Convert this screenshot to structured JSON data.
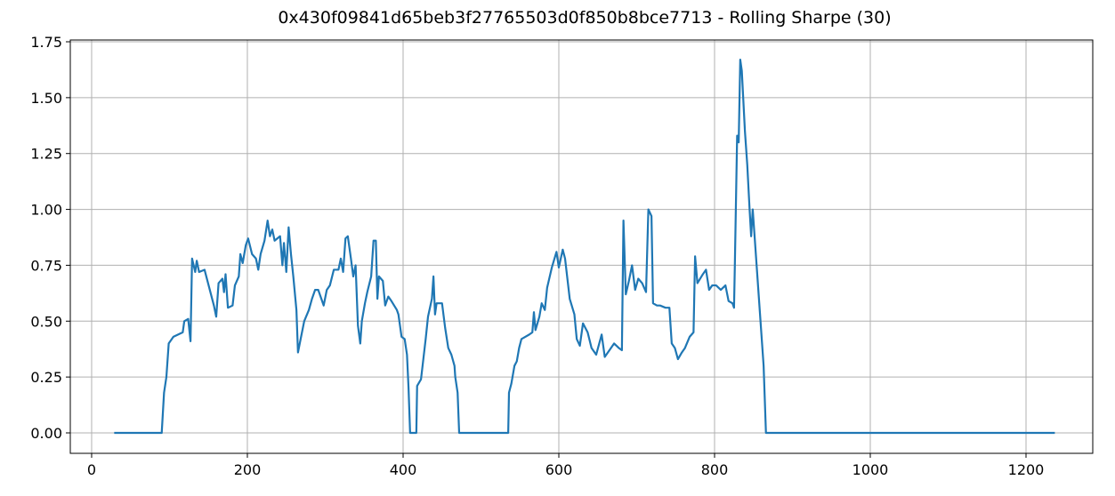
{
  "chart_data": {
    "type": "line",
    "title": "0x430f09841d65beb3f27765503d0f850b8bce7713 - Rolling Sharpe (30)",
    "color": "#1f77b4",
    "grid": true,
    "xlim": [
      -27.4,
      1285.7
    ],
    "ylim": [
      -0.0915,
      1.758
    ],
    "xticks": [
      0,
      200,
      400,
      600,
      800,
      1000,
      1200
    ],
    "yticks": [
      {
        "value": 0,
        "label": "0.00"
      },
      {
        "value": 0.25,
        "label": "0.25"
      },
      {
        "value": 0.5,
        "label": "0.50"
      },
      {
        "value": 0.75,
        "label": "0.75"
      },
      {
        "value": 1,
        "label": "1.00"
      },
      {
        "value": 1.25,
        "label": "1.25"
      },
      {
        "value": 1.5,
        "label": "1.50"
      },
      {
        "value": 1.75,
        "label": "1.75"
      }
    ],
    "x": [
      29,
      90,
      93,
      96,
      99,
      105,
      117,
      119,
      124,
      127,
      129,
      133,
      135,
      138,
      145,
      151,
      157,
      160,
      163,
      168,
      170,
      172,
      175,
      181,
      184,
      189,
      191,
      194,
      198,
      201,
      206,
      211,
      214,
      217,
      222,
      226,
      229,
      232,
      235,
      242,
      245,
      247,
      250,
      253,
      256,
      259,
      263,
      265,
      269,
      273,
      279,
      283,
      287,
      291,
      295,
      298,
      302,
      306,
      311,
      317,
      320,
      323,
      326,
      329,
      333,
      336,
      339,
      342,
      345,
      347,
      351,
      354,
      359,
      362,
      365,
      367,
      369,
      374,
      377,
      381,
      385,
      392,
      394,
      398,
      402,
      405,
      407,
      409,
      417,
      418,
      423,
      425,
      429,
      432,
      437,
      439,
      441,
      443,
      450,
      454,
      458,
      462,
      466,
      467,
      470,
      472,
      535,
      536,
      539,
      543,
      546,
      549,
      552,
      562,
      566,
      568,
      570,
      575,
      578,
      582,
      585,
      591,
      597,
      600,
      605,
      608,
      614,
      620,
      623,
      627,
      631,
      637,
      642,
      648,
      655,
      659,
      665,
      671,
      677,
      681,
      683,
      686,
      690,
      694,
      698,
      702,
      707,
      712,
      715,
      719,
      721,
      726,
      730,
      737,
      742,
      745,
      749,
      753,
      758,
      762,
      768,
      773,
      775,
      778,
      785,
      789,
      793,
      797,
      802,
      808,
      814,
      818,
      823,
      825,
      826,
      829,
      831,
      833,
      835,
      839,
      842,
      845,
      847,
      849,
      851,
      855,
      859,
      863,
      864,
      866,
      1237
    ],
    "values": [
      0,
      0,
      0.18,
      0.25,
      0.4,
      0.43,
      0.45,
      0.5,
      0.51,
      0.41,
      0.78,
      0.72,
      0.77,
      0.72,
      0.73,
      0.65,
      0.57,
      0.52,
      0.67,
      0.69,
      0.63,
      0.71,
      0.56,
      0.57,
      0.66,
      0.7,
      0.8,
      0.76,
      0.84,
      0.87,
      0.8,
      0.78,
      0.73,
      0.8,
      0.86,
      0.95,
      0.88,
      0.91,
      0.86,
      0.88,
      0.75,
      0.85,
      0.72,
      0.92,
      0.8,
      0.7,
      0.55,
      0.36,
      0.43,
      0.5,
      0.55,
      0.6,
      0.64,
      0.64,
      0.6,
      0.57,
      0.64,
      0.66,
      0.73,
      0.73,
      0.78,
      0.72,
      0.87,
      0.88,
      0.78,
      0.7,
      0.75,
      0.48,
      0.4,
      0.5,
      0.58,
      0.63,
      0.7,
      0.86,
      0.86,
      0.6,
      0.7,
      0.68,
      0.57,
      0.61,
      0.59,
      0.55,
      0.53,
      0.43,
      0.42,
      0.35,
      0.2,
      0,
      0,
      0.21,
      0.24,
      0.3,
      0.42,
      0.52,
      0.6,
      0.7,
      0.53,
      0.58,
      0.58,
      0.47,
      0.38,
      0.35,
      0.3,
      0.25,
      0.18,
      0,
      0,
      0.18,
      0.22,
      0.3,
      0.32,
      0.38,
      0.42,
      0.44,
      0.45,
      0.54,
      0.46,
      0.52,
      0.58,
      0.55,
      0.65,
      0.74,
      0.81,
      0.74,
      0.82,
      0.78,
      0.6,
      0.53,
      0.42,
      0.39,
      0.49,
      0.45,
      0.38,
      0.35,
      0.44,
      0.34,
      0.37,
      0.4,
      0.38,
      0.37,
      0.95,
      0.62,
      0.68,
      0.75,
      0.64,
      0.69,
      0.67,
      0.63,
      1.0,
      0.97,
      0.58,
      0.57,
      0.57,
      0.56,
      0.56,
      0.4,
      0.38,
      0.33,
      0.36,
      0.38,
      0.43,
      0.45,
      0.79,
      0.67,
      0.71,
      0.73,
      0.64,
      0.66,
      0.66,
      0.64,
      0.66,
      0.59,
      0.58,
      0.56,
      0.74,
      1.33,
      1.3,
      1.67,
      1.62,
      1.35,
      1.2,
      1.0,
      0.88,
      1.0,
      0.9,
      0.7,
      0.5,
      0.3,
      0.2,
      0,
      0
    ]
  }
}
